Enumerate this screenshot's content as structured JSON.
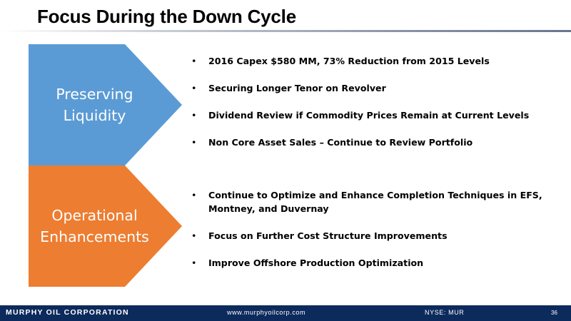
{
  "header": {
    "title": "Focus During the Down Cycle"
  },
  "sections": [
    {
      "label_lines": [
        "Preserving",
        "Liquidity"
      ],
      "color": "#5b9bd5",
      "bullets": [
        "2016 Capex $580 MM, 73% Reduction from 2015 Levels",
        "Securing Longer Tenor on Revolver",
        "Dividend Review if Commodity Prices Remain at Current Levels",
        "Non Core Asset Sales – Continue to Review Portfolio"
      ]
    },
    {
      "label_lines": [
        "Operational",
        "Enhancements"
      ],
      "color": "#ed7d31",
      "bullets": [
        "Continue to Optimize and Enhance Completion Techniques in EFS, Montney, and Duvernay",
        "Focus on Further Cost Structure Improvements",
        "Improve Offshore Production Optimization"
      ]
    }
  ],
  "footer": {
    "brand": "MURPHY OIL CORPORATION",
    "website": "www.murphyoilcorp.com",
    "ticker": "NYSE: MUR",
    "page_number": "36",
    "color": "#0d2a5c"
  }
}
